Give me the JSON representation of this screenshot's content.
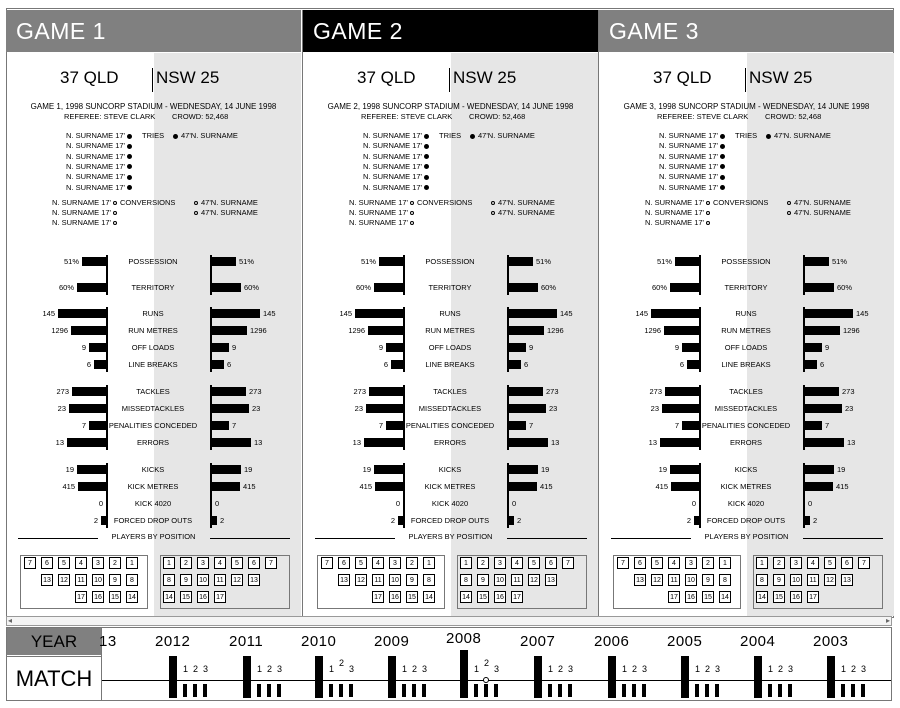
{
  "games": [
    {
      "title": "GAME 1",
      "active": false,
      "home_score": "37 QLD",
      "away_score": "NSW 25",
      "info_line": "GAME 1, 1998 SUNCORP STADIUM - WEDNESDAY, 14 JUNE 1998",
      "referee": "REFEREE: STEVE CLARK",
      "crowd": "CROWD: 52,468"
    },
    {
      "title": "GAME 2",
      "active": true,
      "home_score": "37 QLD",
      "away_score": "NSW 25",
      "info_line": "GAME 2, 1998 SUNCORP STADIUM - WEDNESDAY, 14 JUNE 1998",
      "referee": "REFEREE: STEVE CLARK",
      "crowd": "CROWD: 52,468"
    },
    {
      "title": "GAME 3",
      "active": false,
      "home_score": "37 QLD",
      "away_score": "NSW 25",
      "info_line": "GAME 3, 1998 SUNCORP STADIUM - WEDNESDAY, 14 JUNE 1998",
      "referee": "REFEREE: STEVE CLARK",
      "crowd": "CROWD: 52,468"
    }
  ],
  "tries": {
    "label": "TRIES",
    "home": [
      "N. SURNAME 17'",
      "N. SURNAME 17'",
      "N. SURNAME 17'",
      "N. SURNAME 17'",
      "N. SURNAME 17'",
      "N. SURNAME 17'"
    ],
    "away": [
      "47'N. SURNAME"
    ]
  },
  "conversions": {
    "label": "CONVERSIONS",
    "home": [
      "N. SURNAME 17'",
      "N. SURNAME 17'",
      "N. SURNAME 17'"
    ],
    "away": [
      "47'N. SURNAME",
      "47'N. SURNAME"
    ]
  },
  "stats": [
    {
      "label": "POSSESSION",
      "home_text": "51%",
      "away_text": "51%",
      "home": 51,
      "away": 51,
      "max": 100,
      "group": 0
    },
    {
      "label": "TERRITORY",
      "home_text": "60%",
      "away_text": "60%",
      "home": 60,
      "away": 60,
      "max": 100,
      "group": 0
    },
    {
      "label": "RUNS",
      "home_text": "145",
      "away_text": "145",
      "home": 145,
      "away": 145,
      "max": 145,
      "group": 1
    },
    {
      "label": "RUN METRES",
      "home_text": "1296",
      "away_text": "1296",
      "home": 1296,
      "away": 1296,
      "max": 1800,
      "group": 1
    },
    {
      "label": "OFF LOADS",
      "home_text": "9",
      "away_text": "9",
      "home": 9,
      "away": 9,
      "max": 25,
      "group": 1
    },
    {
      "label": "LINE BREAKS",
      "home_text": "6",
      "away_text": "6",
      "home": 6,
      "away": 6,
      "max": 25,
      "group": 1
    },
    {
      "label": "TACKLES",
      "home_text": "273",
      "away_text": "273",
      "home": 273,
      "away": 273,
      "max": 380,
      "group": 2
    },
    {
      "label": "MISSEDTACKLES",
      "home_text": "23",
      "away_text": "23",
      "home": 23,
      "away": 23,
      "max": 30,
      "group": 2
    },
    {
      "label": "PENALITIES CONCEDED",
      "home_text": "7",
      "away_text": "7",
      "home": 7,
      "away": 7,
      "max": 20,
      "group": 2
    },
    {
      "label": "ERRORS",
      "home_text": "13",
      "away_text": "13",
      "home": 13,
      "away": 13,
      "max": 16,
      "group": 2
    },
    {
      "label": "KICKS",
      "home_text": "19",
      "away_text": "19",
      "home": 19,
      "away": 19,
      "max": 32,
      "group": 3
    },
    {
      "label": "KICK METRES",
      "home_text": "415",
      "away_text": "415",
      "home": 415,
      "away": 415,
      "max": 700,
      "group": 3
    },
    {
      "label": "KICK 4020",
      "home_text": "0",
      "away_text": "0",
      "home": 0,
      "away": 0,
      "max": 10,
      "group": 3
    },
    {
      "label": "FORCED DROP OUTS",
      "home_text": "2",
      "away_text": "2",
      "home": 2,
      "away": 2,
      "max": 20,
      "group": 3
    }
  ],
  "players_by_position": {
    "title": "PLAYERS BY POSITION",
    "home_rows": [
      [
        "7",
        "6",
        "5",
        "4",
        "3",
        "2",
        "1"
      ],
      [
        "13",
        "12",
        "11",
        "10",
        "9",
        "8"
      ],
      [
        "17",
        "16",
        "15",
        "14"
      ]
    ],
    "away_rows": [
      [
        "1",
        "2",
        "3",
        "4",
        "5",
        "6",
        "7"
      ],
      [
        "8",
        "9",
        "10",
        "11",
        "12",
        "13"
      ],
      [
        "14",
        "15",
        "16",
        "17"
      ]
    ]
  },
  "timeline": {
    "year_label": "YEAR",
    "match_label": "MATCH",
    "years": [
      "13",
      "2012",
      "2011",
      "2010",
      "2009",
      "2008",
      "2007",
      "2006",
      "2005",
      "2004",
      "2003"
    ],
    "selected_year": "2008",
    "selected_game": "2",
    "game_labels": [
      "1",
      "2",
      "3"
    ]
  },
  "colors": {
    "header_bg": "#808080",
    "header_active_bg": "#000000",
    "panel_shade": "#e6e6e6"
  },
  "icons": {
    "scroll_left": "◂",
    "scroll_right": "▸"
  }
}
